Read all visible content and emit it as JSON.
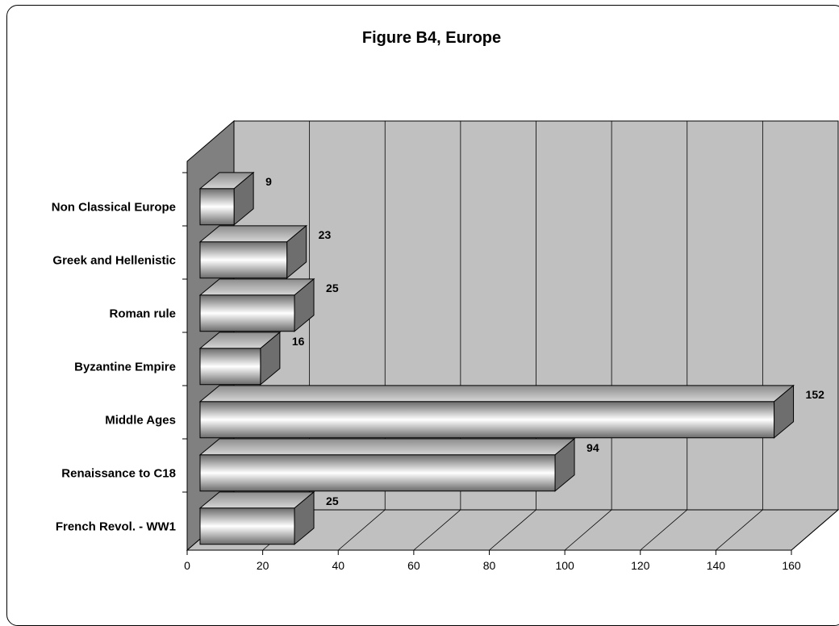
{
  "chart_data": {
    "type": "bar",
    "orientation": "horizontal",
    "style": "3d",
    "title": "Figure B4, Europe",
    "xlabel": "",
    "ylabel": "",
    "categories": [
      "Non Classical Europe",
      "Greek and Hellenistic",
      "Roman rule",
      "Byzantine Empire",
      "Middle Ages",
      "Renaissance to C18",
      "French Revol. - WW1"
    ],
    "values": [
      9,
      23,
      25,
      16,
      152,
      94,
      25
    ],
    "xlim": [
      0,
      160
    ],
    "xticks": [
      0,
      20,
      40,
      60,
      80,
      100,
      120,
      140,
      160
    ],
    "grid": true,
    "legend": "none",
    "colors": {
      "wall": "#c0c0c0",
      "side_wall": "#808080",
      "bar_front_mid": "#ffffff",
      "bar_front_edge": "#6a6a6a"
    }
  }
}
